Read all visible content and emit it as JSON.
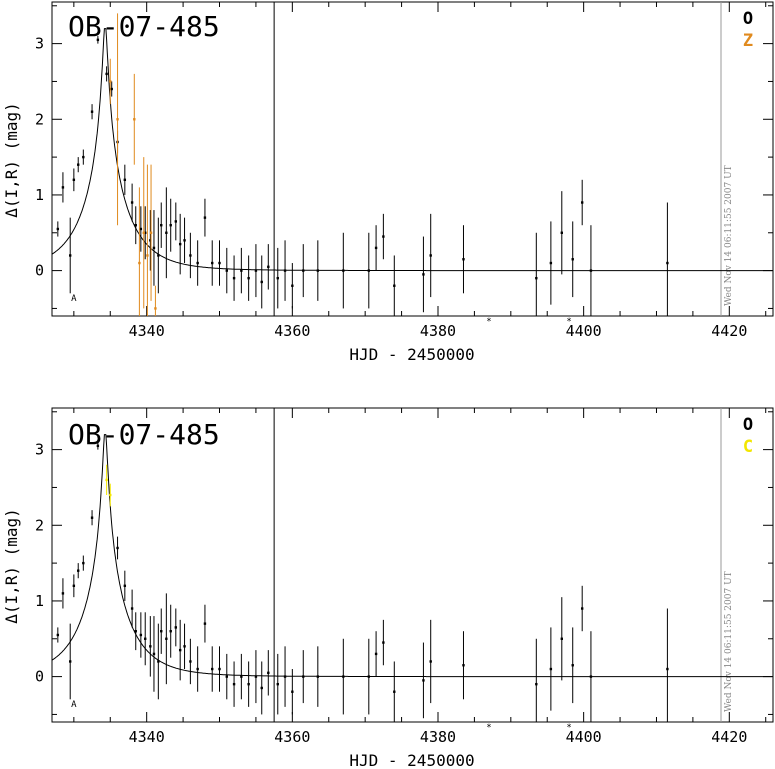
{
  "chart_data": [
    {
      "type": "scatter",
      "title": "OB-07-485",
      "xlabel": "HJD - 2450000",
      "ylabel": "Δ(I,R) (mag)",
      "xlim": [
        4327,
        4426
      ],
      "ylim": [
        -0.6,
        3.55
      ],
      "xticks": [
        4340,
        4360,
        4380,
        4400,
        4420
      ],
      "yticks": [
        0,
        1,
        2,
        3
      ],
      "legend": [
        {
          "label": "O",
          "color": "#000000"
        },
        {
          "label": "Z",
          "color": "#e08a1e"
        }
      ],
      "timestamp": "Wed Nov 14 06:11:55 2007 UT",
      "vline_x": 4357.5,
      "model_curve": {
        "t0": 4334.3,
        "tE": 6.0,
        "u0": 0.05,
        "base": 0.0
      },
      "markers": [
        {
          "x": 4330.0,
          "y": -0.35,
          "text": "A"
        },
        {
          "x": 4387.0,
          "y": -0.65,
          "text": "*"
        },
        {
          "x": 4398.0,
          "y": -0.65,
          "text": "*"
        }
      ],
      "series": [
        {
          "name": "O",
          "color": "#000000",
          "points": [
            [
              4327.8,
              0.55,
              0.1
            ],
            [
              4328.5,
              1.1,
              0.2
            ],
            [
              4329.5,
              0.2,
              0.5
            ],
            [
              4330.0,
              1.2,
              0.15
            ],
            [
              4330.6,
              1.4,
              0.1
            ],
            [
              4331.3,
              1.5,
              0.1
            ],
            [
              4332.5,
              2.1,
              0.1
            ],
            [
              4333.3,
              3.05,
              0.05
            ],
            [
              4334.5,
              2.6,
              0.1
            ],
            [
              4335.2,
              2.4,
              0.1
            ],
            [
              4336.0,
              1.7,
              0.15
            ],
            [
              4337.0,
              1.2,
              0.2
            ],
            [
              4338.0,
              0.9,
              0.25
            ],
            [
              4338.5,
              0.6,
              0.25
            ],
            [
              4339.2,
              0.55,
              0.3
            ],
            [
              4339.8,
              0.5,
              0.35
            ],
            [
              4340.5,
              0.4,
              0.4
            ],
            [
              4341.0,
              0.3,
              0.5
            ],
            [
              4341.6,
              0.2,
              0.5
            ],
            [
              4342.0,
              0.6,
              0.3
            ],
            [
              4342.7,
              0.5,
              0.6
            ],
            [
              4343.3,
              0.6,
              0.35
            ],
            [
              4344.0,
              0.65,
              0.25
            ],
            [
              4344.6,
              0.35,
              0.4
            ],
            [
              4345.2,
              0.4,
              0.3
            ],
            [
              4346.0,
              0.2,
              0.3
            ],
            [
              4347.0,
              0.1,
              0.3
            ],
            [
              4348.0,
              0.7,
              0.25
            ],
            [
              4349.0,
              0.1,
              0.3
            ],
            [
              4350.0,
              0.1,
              0.3
            ],
            [
              4351.0,
              0.0,
              0.3
            ],
            [
              4352.0,
              -0.1,
              0.3
            ],
            [
              4353.0,
              0.0,
              0.3
            ],
            [
              4354.0,
              -0.1,
              0.3
            ],
            [
              4355.0,
              0.0,
              0.35
            ],
            [
              4355.8,
              -0.15,
              0.35
            ],
            [
              4356.7,
              0.05,
              0.3
            ],
            [
              4358.0,
              -0.1,
              0.4
            ],
            [
              4359.0,
              0.0,
              0.4
            ],
            [
              4360.0,
              -0.2,
              0.3
            ],
            [
              4361.5,
              0.0,
              0.35
            ],
            [
              4363.5,
              0.0,
              0.4
            ],
            [
              4367.0,
              0.0,
              0.5
            ],
            [
              4370.5,
              0.0,
              0.5
            ],
            [
              4371.5,
              0.3,
              0.3
            ],
            [
              4372.5,
              0.45,
              0.3
            ],
            [
              4374.0,
              -0.2,
              0.4
            ],
            [
              4378.0,
              -0.05,
              0.5
            ],
            [
              4379.0,
              0.2,
              0.55
            ],
            [
              4383.5,
              0.15,
              0.45
            ],
            [
              4393.5,
              -0.1,
              0.6
            ],
            [
              4395.5,
              0.1,
              0.55
            ],
            [
              4397.0,
              0.5,
              0.55
            ],
            [
              4398.5,
              0.15,
              0.5
            ],
            [
              4399.8,
              0.9,
              0.3
            ],
            [
              4401.0,
              0.0,
              0.6
            ],
            [
              4411.5,
              0.1,
              0.8
            ]
          ]
        },
        {
          "name": "Z",
          "color": "#e08a1e",
          "points": [
            [
              4335.0,
              2.5,
              0.3
            ],
            [
              4336.0,
              2.0,
              1.4
            ],
            [
              4338.3,
              2.0,
              0.6
            ],
            [
              4339.0,
              0.1,
              1.0
            ],
            [
              4339.6,
              0.5,
              1.0
            ],
            [
              4340.1,
              0.2,
              1.2
            ],
            [
              4340.6,
              0.5,
              0.9
            ],
            [
              4341.2,
              -0.5,
              0.3
            ]
          ]
        }
      ]
    },
    {
      "type": "scatter",
      "title": "OB-07-485",
      "xlabel": "HJD - 2450000",
      "ylabel": "Δ(I,R) (mag)",
      "xlim": [
        4327,
        4426
      ],
      "ylim": [
        -0.6,
        3.55
      ],
      "xticks": [
        4340,
        4360,
        4380,
        4400,
        4420
      ],
      "yticks": [
        0,
        1,
        2,
        3
      ],
      "legend": [
        {
          "label": "O",
          "color": "#000000"
        },
        {
          "label": "C",
          "color": "#f2e600"
        }
      ],
      "timestamp": "Wed Nov 14 06:11:55 2007 UT",
      "vline_x": 4357.5,
      "model_curve": {
        "t0": 4334.3,
        "tE": 6.0,
        "u0": 0.05,
        "base": 0.0
      },
      "markers": [
        {
          "x": 4330.0,
          "y": -0.35,
          "text": "A"
        },
        {
          "x": 4387.0,
          "y": -0.65,
          "text": "*"
        },
        {
          "x": 4398.0,
          "y": -0.65,
          "text": "*"
        }
      ],
      "series": [
        {
          "name": "O",
          "color": "#000000",
          "points": [
            [
              4327.8,
              0.55,
              0.1
            ],
            [
              4328.5,
              1.1,
              0.2
            ],
            [
              4329.5,
              0.2,
              0.5
            ],
            [
              4330.0,
              1.2,
              0.15
            ],
            [
              4330.6,
              1.4,
              0.1
            ],
            [
              4331.3,
              1.5,
              0.1
            ],
            [
              4332.5,
              2.1,
              0.1
            ],
            [
              4333.3,
              3.05,
              0.05
            ],
            [
              4336.0,
              1.7,
              0.15
            ],
            [
              4337.0,
              1.2,
              0.2
            ],
            [
              4338.0,
              0.9,
              0.25
            ],
            [
              4338.5,
              0.6,
              0.25
            ],
            [
              4339.2,
              0.55,
              0.3
            ],
            [
              4339.8,
              0.5,
              0.35
            ],
            [
              4340.5,
              0.4,
              0.4
            ],
            [
              4341.0,
              0.3,
              0.5
            ],
            [
              4341.6,
              0.2,
              0.5
            ],
            [
              4342.0,
              0.6,
              0.3
            ],
            [
              4342.7,
              0.5,
              0.6
            ],
            [
              4343.3,
              0.6,
              0.35
            ],
            [
              4344.0,
              0.65,
              0.25
            ],
            [
              4344.6,
              0.35,
              0.4
            ],
            [
              4345.2,
              0.4,
              0.3
            ],
            [
              4346.0,
              0.2,
              0.3
            ],
            [
              4347.0,
              0.1,
              0.3
            ],
            [
              4348.0,
              0.7,
              0.25
            ],
            [
              4349.0,
              0.1,
              0.3
            ],
            [
              4350.0,
              0.1,
              0.3
            ],
            [
              4351.0,
              0.0,
              0.3
            ],
            [
              4352.0,
              -0.1,
              0.3
            ],
            [
              4353.0,
              0.0,
              0.3
            ],
            [
              4354.0,
              -0.1,
              0.3
            ],
            [
              4355.0,
              0.0,
              0.35
            ],
            [
              4355.8,
              -0.15,
              0.35
            ],
            [
              4356.7,
              0.05,
              0.3
            ],
            [
              4358.0,
              -0.1,
              0.4
            ],
            [
              4359.0,
              0.0,
              0.4
            ],
            [
              4360.0,
              -0.2,
              0.3
            ],
            [
              4361.5,
              0.0,
              0.35
            ],
            [
              4363.5,
              0.0,
              0.4
            ],
            [
              4367.0,
              0.0,
              0.5
            ],
            [
              4370.5,
              0.0,
              0.5
            ],
            [
              4371.5,
              0.3,
              0.3
            ],
            [
              4372.5,
              0.45,
              0.3
            ],
            [
              4374.0,
              -0.2,
              0.4
            ],
            [
              4378.0,
              -0.05,
              0.5
            ],
            [
              4379.0,
              0.2,
              0.55
            ],
            [
              4383.5,
              0.15,
              0.45
            ],
            [
              4393.5,
              -0.1,
              0.6
            ],
            [
              4395.5,
              0.1,
              0.55
            ],
            [
              4397.0,
              0.5,
              0.55
            ],
            [
              4398.5,
              0.15,
              0.5
            ],
            [
              4399.8,
              0.9,
              0.3
            ],
            [
              4401.0,
              0.0,
              0.6
            ],
            [
              4411.5,
              0.1,
              0.8
            ]
          ]
        },
        {
          "name": "C",
          "color": "#f2e600",
          "points": [
            [
              4334.5,
              2.6,
              0.2
            ],
            [
              4335.0,
              2.4,
              0.15
            ]
          ]
        }
      ]
    }
  ]
}
